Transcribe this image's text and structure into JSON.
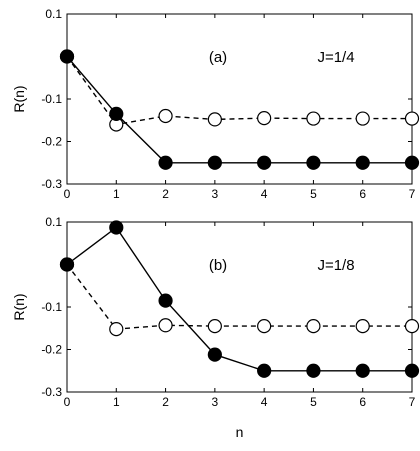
{
  "chart_data": [
    {
      "type": "line",
      "panel_label": "(a)",
      "annotation": "J=1/4",
      "xlabel": "",
      "ylabel": "R(n)",
      "xlim": [
        0,
        7
      ],
      "ylim": [
        -0.3,
        0.1
      ],
      "xticks": [
        0,
        1,
        2,
        3,
        4,
        5,
        6,
        7
      ],
      "yticks": [
        0.1,
        -0.1,
        -0.2,
        -0.3
      ],
      "ytick_labels": [
        "0.1",
        "-0.1",
        "-0.2",
        "-0.3"
      ],
      "x": [
        0,
        1,
        2,
        3,
        4,
        5,
        6,
        7
      ],
      "series": [
        {
          "style": "solid line, filled circles",
          "color": "#000000",
          "values": [
            0.0,
            -0.135,
            -0.25,
            -0.25,
            -0.25,
            -0.25,
            -0.25,
            -0.25
          ]
        },
        {
          "style": "dashed line, open circles",
          "color": "#000000",
          "values": [
            0.0,
            -0.16,
            -0.14,
            -0.148,
            -0.145,
            -0.146,
            -0.146,
            -0.146
          ]
        }
      ]
    },
    {
      "type": "line",
      "panel_label": "(b)",
      "annotation": "J=1/8",
      "xlabel": "n",
      "ylabel": "R(n)",
      "xlim": [
        0,
        7
      ],
      "ylim": [
        -0.3,
        0.1
      ],
      "xticks": [
        0,
        1,
        2,
        3,
        4,
        5,
        6,
        7
      ],
      "yticks": [
        0.1,
        -0.1,
        -0.2,
        -0.3
      ],
      "ytick_labels": [
        "0.1",
        "-0.1",
        "-0.2",
        "-0.3"
      ],
      "x": [
        0,
        1,
        2,
        3,
        4,
        5,
        6,
        7
      ],
      "series": [
        {
          "style": "solid line, filled circles",
          "color": "#000000",
          "values": [
            0.0,
            0.087,
            -0.085,
            -0.212,
            -0.25,
            -0.25,
            -0.25,
            -0.25
          ]
        },
        {
          "style": "dashed line, open circles",
          "color": "#000000",
          "values": [
            0.0,
            -0.152,
            -0.143,
            -0.145,
            -0.145,
            -0.145,
            -0.145,
            -0.145
          ]
        }
      ]
    }
  ]
}
